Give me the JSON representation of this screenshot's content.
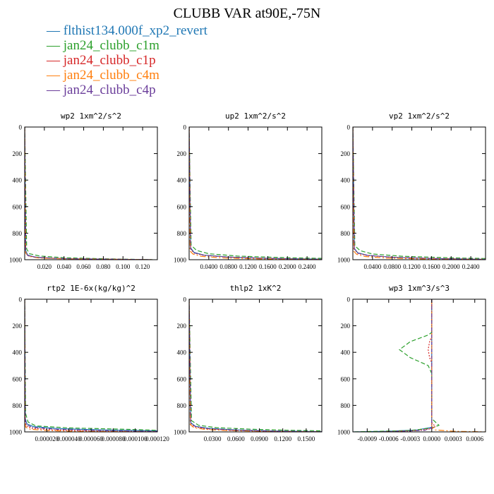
{
  "title": "CLUBB VAR at90E,-75N",
  "legend": [
    {
      "name": "flthist134.000f_xp2_revert",
      "color": "#1f77b4"
    },
    {
      "name": "jan24_clubb_c1m",
      "color": "#2ca02c"
    },
    {
      "name": "jan24_clubb_c1p",
      "color": "#d62728"
    },
    {
      "name": "jan24_clubb_c4m",
      "color": "#ff7f0e"
    },
    {
      "name": "jan24_clubb_c4p",
      "color": "#6a3d9a"
    }
  ],
  "chart_data": [
    {
      "type": "line",
      "title": "wp2  1xm^2/s^2",
      "xlim": [
        0.0,
        0.135
      ],
      "ylim": [
        0,
        1000
      ],
      "yticks": [
        "0",
        "200",
        "400",
        "600",
        "800",
        "1000"
      ],
      "xticks": [
        {
          "v": 0.02,
          "label": "0.020"
        },
        {
          "v": 0.04,
          "label": "0.040"
        },
        {
          "v": 0.06,
          "label": "0.060"
        },
        {
          "v": 0.08,
          "label": "0.080"
        },
        {
          "v": 0.1,
          "label": "0.100"
        },
        {
          "v": 0.12,
          "label": "0.120"
        }
      ],
      "series": [
        {
          "name": "flthist134.000f_xp2_revert",
          "x": [
            0.0,
            0.001,
            0.003,
            0.01,
            0.03,
            0.06,
            0.1,
            0.13
          ],
          "y": [
            0,
            930,
            965,
            980,
            990,
            995,
            998,
            1000
          ]
        },
        {
          "name": "jan24_clubb_c1m",
          "x": [
            0.0,
            0.002,
            0.005,
            0.015,
            0.04,
            0.08,
            0.13
          ],
          "y": [
            0,
            920,
            955,
            972,
            985,
            993,
            1000
          ]
        },
        {
          "name": "jan24_clubb_c1p",
          "x": [
            0.0,
            0.001,
            0.003,
            0.012,
            0.04,
            0.1,
            0.13
          ],
          "y": [
            0,
            940,
            970,
            983,
            992,
            997,
            1000
          ]
        },
        {
          "name": "jan24_clubb_c4m",
          "x": [
            0.0,
            0.001,
            0.004,
            0.015,
            0.05,
            0.13
          ],
          "y": [
            0,
            950,
            975,
            988,
            995,
            1000
          ]
        },
        {
          "name": "jan24_clubb_c4p",
          "x": [
            0.0,
            0.001,
            0.003,
            0.012,
            0.04,
            0.13
          ],
          "y": [
            0,
            935,
            968,
            982,
            992,
            1000
          ]
        }
      ]
    },
    {
      "type": "line",
      "title": "up2  1xm^2/s^2",
      "xlim": [
        0.0,
        0.27
      ],
      "ylim": [
        0,
        1000
      ],
      "yticks": [
        "0",
        "200",
        "400",
        "600",
        "800",
        "1000"
      ],
      "xticks": [
        {
          "v": 0.04,
          "label": "0.0400"
        },
        {
          "v": 0.08,
          "label": "0.0800"
        },
        {
          "v": 0.12,
          "label": "0.1200"
        },
        {
          "v": 0.16,
          "label": "0.1600"
        },
        {
          "v": 0.2,
          "label": "0.2000"
        },
        {
          "v": 0.24,
          "label": "0.2400"
        }
      ],
      "series": [
        {
          "name": "flthist134.000f_xp2_revert",
          "x": [
            0.0,
            0.003,
            0.01,
            0.03,
            0.08,
            0.16,
            0.27
          ],
          "y": [
            0,
            910,
            945,
            965,
            980,
            990,
            996
          ]
        },
        {
          "name": "jan24_clubb_c1m",
          "x": [
            0.0,
            0.004,
            0.015,
            0.04,
            0.1,
            0.2,
            0.27
          ],
          "y": [
            0,
            890,
            930,
            955,
            973,
            985,
            990
          ]
        },
        {
          "name": "jan24_clubb_c1p",
          "x": [
            0.0,
            0.003,
            0.01,
            0.03,
            0.09,
            0.18,
            0.27
          ],
          "y": [
            0,
            920,
            950,
            968,
            982,
            992,
            997
          ]
        },
        {
          "name": "jan24_clubb_c4m",
          "x": [
            0.0,
            0.002,
            0.008,
            0.025,
            0.07,
            0.15,
            0.27
          ],
          "y": [
            0,
            935,
            958,
            975,
            987,
            994,
            999
          ]
        },
        {
          "name": "jan24_clubb_c4p",
          "x": [
            0.0,
            0.003,
            0.01,
            0.03,
            0.08,
            0.17,
            0.27
          ],
          "y": [
            0,
            915,
            948,
            966,
            981,
            991,
            997
          ]
        }
      ]
    },
    {
      "type": "line",
      "title": "vp2  1xm^2/s^2",
      "xlim": [
        0.0,
        0.27
      ],
      "ylim": [
        0,
        1000
      ],
      "yticks": [
        "0",
        "200",
        "400",
        "600",
        "800",
        "1000"
      ],
      "xticks": [
        {
          "v": 0.04,
          "label": "0.0400"
        },
        {
          "v": 0.08,
          "label": "0.0800"
        },
        {
          "v": 0.12,
          "label": "0.1200"
        },
        {
          "v": 0.16,
          "label": "0.1600"
        },
        {
          "v": 0.2,
          "label": "0.2000"
        },
        {
          "v": 0.24,
          "label": "0.2400"
        }
      ],
      "series": [
        {
          "name": "flthist134.000f_xp2_revert",
          "x": [
            0.0,
            0.003,
            0.01,
            0.03,
            0.08,
            0.16,
            0.27
          ],
          "y": [
            0,
            915,
            948,
            967,
            981,
            991,
            997
          ]
        },
        {
          "name": "jan24_clubb_c1m",
          "x": [
            0.0,
            0.004,
            0.015,
            0.04,
            0.1,
            0.2,
            0.27
          ],
          "y": [
            0,
            895,
            932,
            957,
            974,
            986,
            991
          ]
        },
        {
          "name": "jan24_clubb_c1p",
          "x": [
            0.0,
            0.003,
            0.01,
            0.03,
            0.09,
            0.18,
            0.27
          ],
          "y": [
            0,
            922,
            952,
            969,
            983,
            992,
            997
          ]
        },
        {
          "name": "jan24_clubb_c4m",
          "x": [
            0.0,
            0.002,
            0.008,
            0.025,
            0.07,
            0.15,
            0.27
          ],
          "y": [
            0,
            937,
            960,
            976,
            988,
            995,
            999
          ]
        },
        {
          "name": "jan24_clubb_c4p",
          "x": [
            0.0,
            0.003,
            0.01,
            0.03,
            0.08,
            0.17,
            0.27
          ],
          "y": [
            0,
            918,
            950,
            967,
            982,
            992,
            997
          ]
        }
      ]
    },
    {
      "type": "line",
      "title": "rtp2  1E-6x(kg/kg)^2",
      "xlim": [
        0.0,
        0.00012
      ],
      "ylim": [
        0,
        1000
      ],
      "yticks": [
        "0",
        "200",
        "400",
        "600",
        "800",
        "1000"
      ],
      "xticks": [
        {
          "v": 2e-05,
          "label": "0.000020"
        },
        {
          "v": 4e-05,
          "label": "0.000040"
        },
        {
          "v": 6e-05,
          "label": "0.000060"
        },
        {
          "v": 8e-05,
          "label": "0.000080"
        },
        {
          "v": 0.0001,
          "label": "0.000100"
        },
        {
          "v": 0.00012,
          "label": "0.000120"
        }
      ],
      "series": [
        {
          "name": "flthist134.000f_xp2_revert",
          "x": [
            0.0,
            5e-07,
            2e-06,
            8e-06,
            3e-05,
            7e-05,
            0.00012
          ],
          "y": [
            0,
            900,
            940,
            960,
            975,
            985,
            992
          ]
        },
        {
          "name": "jan24_clubb_c1m",
          "x": [
            0.0,
            8e-07,
            3e-06,
            1e-05,
            4e-05,
            9e-05,
            0.00012
          ],
          "y": [
            0,
            860,
            925,
            955,
            970,
            980,
            988
          ]
        },
        {
          "name": "jan24_clubb_c1p",
          "x": [
            0.0,
            4e-07,
            1.5e-06,
            6e-06,
            2.5e-05,
            6e-05,
            0.00012
          ],
          "y": [
            0,
            920,
            955,
            972,
            985,
            993,
            998
          ]
        },
        {
          "name": "jan24_clubb_c4m",
          "x": [
            0.0,
            3e-07,
            1e-06,
            5e-06,
            2e-05,
            5e-05,
            0.00012
          ],
          "y": [
            0,
            940,
            965,
            980,
            990,
            996,
            1000
          ]
        },
        {
          "name": "jan24_clubb_c4p",
          "x": [
            0.0,
            5e-07,
            2e-06,
            7e-06,
            2.8e-05,
            6.5e-05,
            0.00012
          ],
          "y": [
            0,
            910,
            948,
            966,
            980,
            990,
            996
          ]
        }
      ]
    },
    {
      "type": "line",
      "title": "thlp2  1xK^2",
      "xlim": [
        0.0,
        0.17
      ],
      "ylim": [
        0,
        1000
      ],
      "yticks": [
        "0",
        "200",
        "400",
        "600",
        "800",
        "1000"
      ],
      "xticks": [
        {
          "v": 0.03,
          "label": "0.0300"
        },
        {
          "v": 0.06,
          "label": "0.0600"
        },
        {
          "v": 0.09,
          "label": "0.0900"
        },
        {
          "v": 0.12,
          "label": "0.1200"
        },
        {
          "v": 0.15,
          "label": "0.1500"
        }
      ],
      "series": [
        {
          "name": "flthist134.000f_xp2_revert",
          "x": [
            0.0,
            0.002,
            0.008,
            0.025,
            0.06,
            0.11,
            0.17
          ],
          "y": [
            0,
            930,
            958,
            973,
            985,
            993,
            998
          ]
        },
        {
          "name": "jan24_clubb_c1m",
          "x": [
            0.0,
            0.003,
            0.012,
            0.035,
            0.08,
            0.13,
            0.17
          ],
          "y": [
            0,
            915,
            950,
            968,
            980,
            988,
            992
          ]
        },
        {
          "name": "jan24_clubb_c1p",
          "x": [
            0.0,
            0.002,
            0.007,
            0.022,
            0.055,
            0.1,
            0.17
          ],
          "y": [
            0,
            938,
            962,
            977,
            988,
            995,
            999
          ]
        },
        {
          "name": "jan24_clubb_c4m",
          "x": [
            0.0,
            0.0015,
            0.006,
            0.02,
            0.05,
            0.1,
            0.17
          ],
          "y": [
            0,
            945,
            968,
            981,
            990,
            996,
            1000
          ]
        },
        {
          "name": "jan24_clubb_c4p",
          "x": [
            0.0,
            0.002,
            0.008,
            0.024,
            0.058,
            0.11,
            0.17
          ],
          "y": [
            0,
            932,
            960,
            975,
            987,
            994,
            999
          ]
        }
      ]
    },
    {
      "type": "line",
      "title": "wp3  1xm^3/s^3",
      "xlim": [
        -0.0011,
        0.00075
      ],
      "ylim": [
        0,
        1000
      ],
      "yticks": [
        "0",
        "200",
        "400",
        "600",
        "800",
        "1000"
      ],
      "xticks": [
        {
          "v": -0.0009,
          "label": "-0.0009"
        },
        {
          "v": -0.0006,
          "label": "-0.0006"
        },
        {
          "v": -0.0003,
          "label": "-0.0003"
        },
        {
          "v": 0.0,
          "label": "0.0000"
        },
        {
          "v": 0.0003,
          "label": "0.0003"
        },
        {
          "v": 0.0006,
          "label": "0.0006"
        }
      ],
      "series": [
        {
          "name": "flthist134.000f_xp2_revert",
          "x": [
            0.0,
            0.0,
            0.0,
            0.0,
            -0.0002,
            -0.0006,
            -0.0011
          ],
          "y": [
            0,
            400,
            900,
            965,
            985,
            995,
            1000
          ]
        },
        {
          "name": "jan24_clubb_c1m",
          "x": [
            0.0,
            0.0,
            -5e-05,
            -0.0003,
            -0.00045,
            -0.0003,
            -5e-05,
            0.0,
            0.0,
            0.0001,
            0.0,
            -0.0003,
            -0.0011
          ],
          "y": [
            0,
            250,
            270,
            320,
            380,
            440,
            500,
            560,
            900,
            950,
            970,
            990,
            1000
          ]
        },
        {
          "name": "jan24_clubb_c1p",
          "x": [
            0.0,
            0.0,
            -3e-05,
            -5e-05,
            -3e-05,
            0.0,
            0.0,
            5e-05,
            0.0,
            -0.0002,
            -0.0007
          ],
          "y": [
            0,
            280,
            320,
            380,
            440,
            480,
            930,
            960,
            975,
            990,
            1000
          ]
        },
        {
          "name": "jan24_clubb_c4m",
          "x": [
            0.0,
            0.0,
            5e-05,
            0.0003,
            0.00075
          ],
          "y": [
            0,
            960,
            985,
            995,
            1000
          ]
        },
        {
          "name": "jan24_clubb_c4p",
          "x": [
            0.0,
            0.0,
            0.0,
            0.0,
            -0.0001,
            -0.0004,
            -0.0008
          ],
          "y": [
            0,
            400,
            900,
            970,
            988,
            996,
            1000
          ]
        }
      ]
    }
  ]
}
